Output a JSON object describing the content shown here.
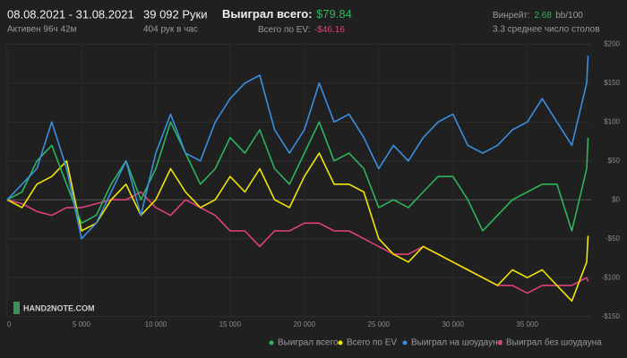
{
  "header": {
    "date_range": "08.08.2021 - 31.08.2021",
    "active": "Активен 96ч 42м",
    "hands": "39 092 Руки",
    "hands_per_hour": "404 рук в час",
    "won_label": "Выиграл всего:",
    "won_value": "$79.84",
    "ev_label": "Всего по EV:",
    "ev_value": "-$46.16",
    "winrate_label": "Винрейт:",
    "winrate_value": "2.68",
    "winrate_unit": "bb/100",
    "tables": "3.3 среднее число столов"
  },
  "watermark": "HAND2NOTE.COM",
  "chart_data": {
    "type": "line",
    "x": [
      0,
      1000,
      2000,
      3000,
      4000,
      5000,
      6000,
      7000,
      8000,
      9000,
      10000,
      11000,
      12000,
      13000,
      14000,
      15000,
      16000,
      17000,
      18000,
      19000,
      20000,
      21000,
      22000,
      23000,
      24000,
      25000,
      26000,
      27000,
      28000,
      29000,
      30000,
      31000,
      32000,
      33000,
      34000,
      35000,
      36000,
      37000,
      38000,
      39000,
      39092
    ],
    "series": [
      {
        "name": "Выиграл всего",
        "color": "#2db55d",
        "values": [
          0,
          10,
          50,
          70,
          20,
          -30,
          -20,
          20,
          50,
          0,
          40,
          100,
          60,
          20,
          40,
          80,
          60,
          90,
          40,
          20,
          60,
          100,
          50,
          60,
          40,
          -10,
          0,
          -10,
          10,
          30,
          30,
          0,
          -40,
          -20,
          0,
          10,
          20,
          20,
          -40,
          40,
          79.84
        ]
      },
      {
        "name": "Всего по EV",
        "color": "#f2e600",
        "values": [
          0,
          -10,
          20,
          30,
          50,
          -40,
          -30,
          0,
          20,
          -20,
          0,
          40,
          10,
          -10,
          0,
          30,
          10,
          40,
          0,
          -10,
          30,
          60,
          20,
          20,
          10,
          -50,
          -70,
          -80,
          -60,
          -70,
          -80,
          -90,
          -100,
          -110,
          -90,
          -100,
          -90,
          -110,
          -130,
          -80,
          -46.16
        ]
      },
      {
        "name": "Выиграл на шоудауне",
        "color": "#3a8fe0",
        "values": [
          0,
          20,
          40,
          100,
          40,
          -50,
          -30,
          10,
          50,
          -20,
          60,
          110,
          60,
          50,
          100,
          130,
          150,
          160,
          90,
          60,
          90,
          150,
          100,
          110,
          80,
          40,
          70,
          50,
          80,
          100,
          110,
          70,
          60,
          70,
          90,
          100,
          130,
          100,
          70,
          150,
          185
        ]
      },
      {
        "name": "Выиграл без шоудауна",
        "color": "#e0407a",
        "values": [
          0,
          -5,
          -15,
          -20,
          -10,
          -10,
          -5,
          0,
          0,
          10,
          -10,
          -20,
          0,
          -10,
          -20,
          -40,
          -40,
          -60,
          -40,
          -40,
          -30,
          -30,
          -40,
          -40,
          -50,
          -60,
          -70,
          -70,
          -60,
          -70,
          -80,
          -90,
          -100,
          -110,
          -110,
          -120,
          -110,
          -110,
          -110,
          -100,
          -105
        ]
      }
    ],
    "xlim": [
      0,
      39300
    ],
    "xticks": [
      0,
      {
        "value": 5000,
        "label": "5 000"
      },
      {
        "value": 10000,
        "label": "10 000"
      },
      {
        "value": 15000,
        "label": "15 000"
      },
      {
        "value": 20000,
        "label": "20 000"
      },
      {
        "value": 25000,
        "label": "25 000"
      },
      {
        "value": 30000,
        "label": "30 000"
      },
      {
        "value": 35000,
        "label": "35 000"
      }
    ],
    "ylim": [
      -155,
      205
    ],
    "yticks": [
      {
        "value": -150,
        "label": "-$150"
      },
      {
        "value": -100,
        "label": "-$100"
      },
      {
        "value": -50,
        "label": "-$50"
      },
      {
        "value": 0,
        "label": "$0"
      },
      {
        "value": 50,
        "label": "$50"
      },
      {
        "value": 100,
        "label": "$100"
      },
      {
        "value": 150,
        "label": "$150"
      },
      {
        "value": 200,
        "label": "$200"
      }
    ],
    "grid": true
  }
}
